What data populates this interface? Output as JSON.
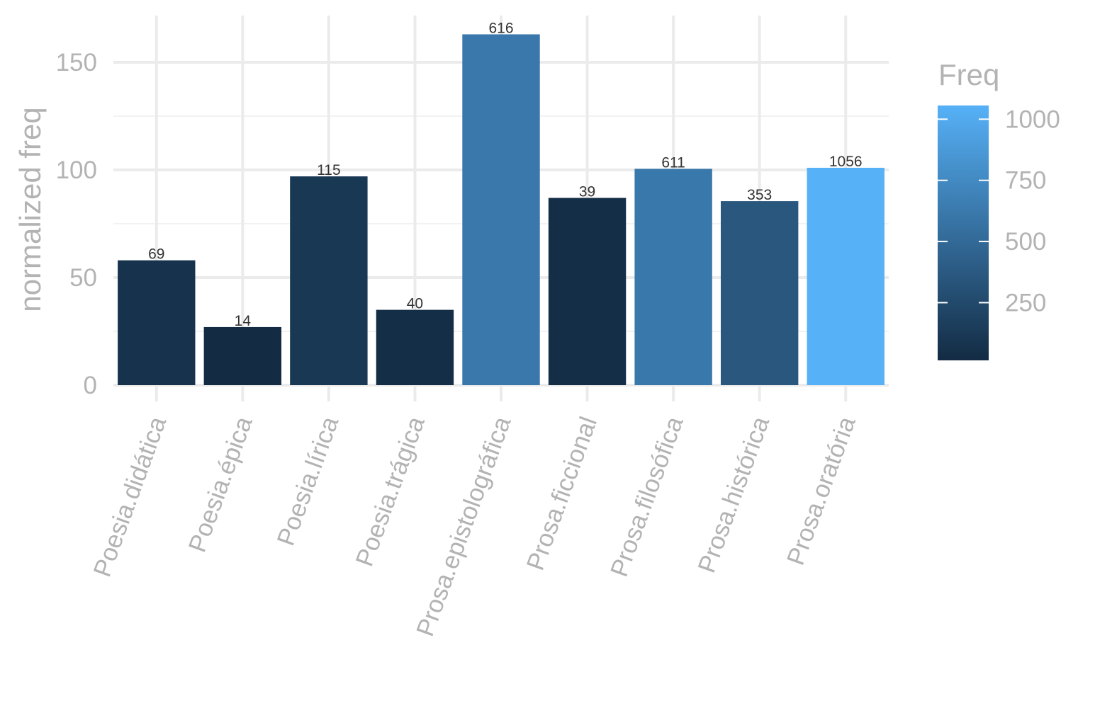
{
  "chart_data": {
    "type": "bar",
    "xlabel": "",
    "ylabel": "normalized freq",
    "ylim": [
      0,
      170
    ],
    "yticks": [
      0,
      50,
      100,
      150
    ],
    "categories": [
      "Poesia.didática",
      "Poesia.épica",
      "Poesia.lírica",
      "Poesia.trágica",
      "Prosa.epistolográfica",
      "Prosa.ficcional",
      "Prosa.filosófica",
      "Prosa.histórica",
      "Prosa.oratória"
    ],
    "values": [
      58,
      27,
      97,
      35,
      163,
      87,
      100.5,
      85.5,
      101
    ],
    "freq": [
      69,
      14,
      115,
      40,
      616,
      39,
      611,
      353,
      1056
    ],
    "grid": true,
    "legend": {
      "title": "Freq",
      "placement": "right",
      "ticks": [
        250,
        500,
        750,
        1000
      ],
      "range": [
        14,
        1056
      ],
      "color_low": "#132b43",
      "color_high": "#56b1f7"
    }
  }
}
